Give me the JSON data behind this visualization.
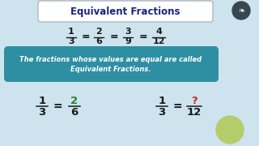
{
  "bg_color": "#cde4ef",
  "title": "Equivalent Fractions",
  "title_color": "#1a237e",
  "title_box_color": "#ffffff",
  "title_box_edge": "#aaaaaa",
  "eq1_nums": [
    "1",
    "2",
    "3",
    "4"
  ],
  "eq1_dens": [
    "3",
    "6",
    "9",
    "12"
  ],
  "info_box_color": "#2e8fa3",
  "info_text1": "The fractions whose values are equal are called",
  "info_text2": "Equivalent Fractions.",
  "info_text_color": "#ffffff",
  "ex1_num1": "1",
  "ex1_den1": "3",
  "ex1_num2": "2",
  "ex1_den2": "6",
  "ex1_num2_color": "#2e7d32",
  "ex2_num1": "1",
  "ex2_den1": "3",
  "ex2_num2": "?",
  "ex2_den2": "12",
  "ex2_num2_color": "#c62828",
  "circle_color": "#b5cc6a",
  "logo_bg": "#455a64",
  "text_color": "#1a1a1a"
}
